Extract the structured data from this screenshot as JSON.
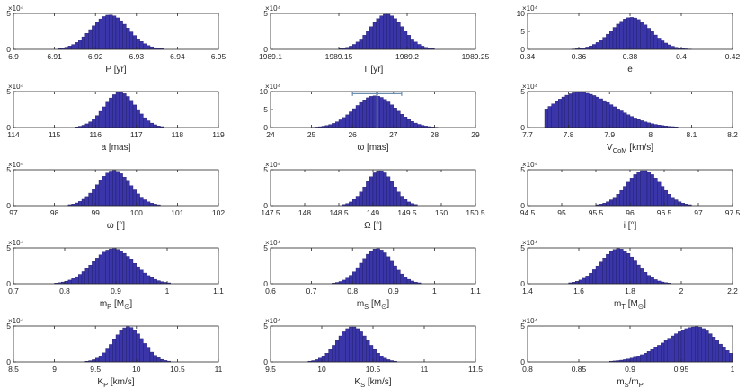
{
  "figure": {
    "style": {
      "bar_fill": "#3a35a8",
      "bar_edge": "#1f1c66",
      "axis_color": "#262626",
      "marker_color": "#6f8fb0"
    },
    "multiplier_label": "×10⁴"
  },
  "chart_data": [
    {
      "type": "bar",
      "xlabel": "P [yr]",
      "xlim": [
        6.9,
        6.95
      ],
      "ylim": [
        0,
        5
      ],
      "ytick_labels": [
        "0",
        "5"
      ],
      "xtick_labels": [
        "6.9",
        "6.91",
        "6.92",
        "6.93",
        "6.94",
        "6.95"
      ],
      "peak_x": 6.9235,
      "sigma": 0.0045,
      "peak": 4.8
    },
    {
      "type": "bar",
      "xlabel": "T [yr]",
      "xlim": [
        1989.1,
        1989.25
      ],
      "ylim": [
        0,
        5
      ],
      "ytick_labels": [
        "0",
        "5"
      ],
      "xtick_labels": [
        "1989.1",
        "1989.15",
        "1989.2",
        "1989.25"
      ],
      "peak_x": 1989.185,
      "sigma": 0.012,
      "peak": 4.9
    },
    {
      "type": "bar",
      "xlabel": "e",
      "xlim": [
        0.34,
        0.42
      ],
      "ylim": [
        0,
        10
      ],
      "ytick_labels": [
        "0",
        "5",
        "10"
      ],
      "xtick_labels": [
        "0.34",
        "0.36",
        "0.38",
        "0.4",
        "0.42"
      ],
      "peak_x": 0.3805,
      "sigma": 0.0075,
      "peak": 8.9
    },
    {
      "type": "bar",
      "xlabel": "a [mas]",
      "xlim": [
        114,
        119
      ],
      "ylim": [
        0,
        5
      ],
      "ytick_labels": [
        "0",
        "5"
      ],
      "xtick_labels": [
        "114",
        "115",
        "116",
        "117",
        "118",
        "119"
      ],
      "peak_x": 116.6,
      "sigma": 0.38,
      "peak": 4.9
    },
    {
      "type": "bar",
      "xlabel": "ϖ [mas]",
      "xlim": [
        24,
        29
      ],
      "ylim": [
        0,
        10
      ],
      "ytick_labels": [
        "0",
        "5",
        "10"
      ],
      "xtick_labels": [
        "24",
        "25",
        "26",
        "27",
        "28",
        "29"
      ],
      "peak_x": 26.55,
      "sigma": 0.5,
      "peak": 8.8,
      "error_bar": {
        "x": 26.6,
        "y": 9.4,
        "xerr": 0.6
      }
    },
    {
      "type": "bar",
      "xlabel": "V_CoM [km/s]",
      "xlim": [
        7.7,
        8.2
      ],
      "ylim": [
        0,
        5
      ],
      "ytick_labels": [
        "0",
        "5"
      ],
      "xtick_labels": [
        "7.7",
        "7.8",
        "7.9",
        "8",
        "8.1",
        "8.2"
      ],
      "peak_x": 7.825,
      "sigma_left": 0.07,
      "sigma_right": 0.085,
      "peak": 4.9,
      "min_x": 7.745
    },
    {
      "type": "bar",
      "xlabel": "ω [°]",
      "xlim": [
        97,
        102
      ],
      "ylim": [
        0,
        5
      ],
      "ytick_labels": [
        "0",
        "5"
      ],
      "xtick_labels": [
        "97",
        "98",
        "99",
        "100",
        "101",
        "102"
      ],
      "peak_x": 99.45,
      "sigma": 0.4,
      "peak": 4.9
    },
    {
      "type": "bar",
      "xlabel": "Ω [°]",
      "xlim": [
        147.5,
        150.5
      ],
      "ylim": [
        0,
        5
      ],
      "ytick_labels": [
        "0",
        "5"
      ],
      "xtick_labels": [
        "147.5",
        "148",
        "148.5",
        "149",
        "149.5",
        "150",
        "150.5"
      ],
      "peak_x": 149.1,
      "sigma": 0.2,
      "peak": 4.9
    },
    {
      "type": "bar",
      "xlabel": "i [°]",
      "xlim": [
        94.5,
        97.5
      ],
      "ylim": [
        0,
        5
      ],
      "ytick_labels": [
        "0",
        "5"
      ],
      "xtick_labels": [
        "94.5",
        "95",
        "95.5",
        "96",
        "96.5",
        "97",
        "97.5"
      ],
      "peak_x": 96.2,
      "sigma": 0.25,
      "peak": 4.9
    },
    {
      "type": "bar",
      "xlabel": "m_P [M_⊙]",
      "xlim": [
        0.7,
        1.1
      ],
      "ylim": [
        0,
        5
      ],
      "ytick_labels": [
        "0",
        "5"
      ],
      "xtick_labels": [
        "0.7",
        "0.8",
        "0.9",
        "1",
        "1.1"
      ],
      "peak_x": 0.895,
      "sigma": 0.04,
      "peak": 4.9
    },
    {
      "type": "bar",
      "xlabel": "m_S [M_⊙]",
      "xlim": [
        0.6,
        1.1
      ],
      "ylim": [
        0,
        5
      ],
      "ytick_labels": [
        "0",
        "5"
      ],
      "xtick_labels": [
        "0.6",
        "0.7",
        "0.8",
        "0.9",
        "1",
        "1.1"
      ],
      "peak_x": 0.86,
      "sigma": 0.038,
      "peak": 4.9
    },
    {
      "type": "bar",
      "xlabel": "m_T [M_⊙]",
      "xlim": [
        1.4,
        2.2
      ],
      "ylim": [
        0,
        5
      ],
      "ytick_labels": [
        "0",
        "5"
      ],
      "xtick_labels": [
        "1.4",
        "1.6",
        "1.8",
        "2",
        "2.2"
      ],
      "peak_x": 1.755,
      "sigma": 0.07,
      "peak": 4.9
    },
    {
      "type": "bar",
      "xlabel": "K_P [km/s]",
      "xlim": [
        8.5,
        11
      ],
      "ylim": [
        0,
        5
      ],
      "ytick_labels": [
        "0",
        "5"
      ],
      "xtick_labels": [
        "8.5",
        "9",
        "9.5",
        "10",
        "10.5",
        "11"
      ],
      "peak_x": 9.9,
      "sigma": 0.18,
      "peak": 4.9
    },
    {
      "type": "bar",
      "xlabel": "K_S [km/s]",
      "xlim": [
        9.5,
        11.5
      ],
      "ylim": [
        0,
        5
      ],
      "ytick_labels": [
        "0",
        "5"
      ],
      "xtick_labels": [
        "9.5",
        "10",
        "10.5",
        "11",
        "11.5"
      ],
      "peak_x": 10.3,
      "sigma": 0.15,
      "peak": 4.9
    },
    {
      "type": "bar",
      "xlabel": "m_S/m_P",
      "xlim": [
        0.8,
        1
      ],
      "ylim": [
        0,
        5
      ],
      "ytick_labels": [
        "0",
        "5"
      ],
      "xtick_labels": [
        "0.8",
        "0.85",
        "0.9",
        "0.95",
        "1"
      ],
      "peak_x": 0.965,
      "sigma_left": 0.03,
      "sigma_right": 0.02,
      "peak": 4.9,
      "max_x": 1.0
    }
  ]
}
